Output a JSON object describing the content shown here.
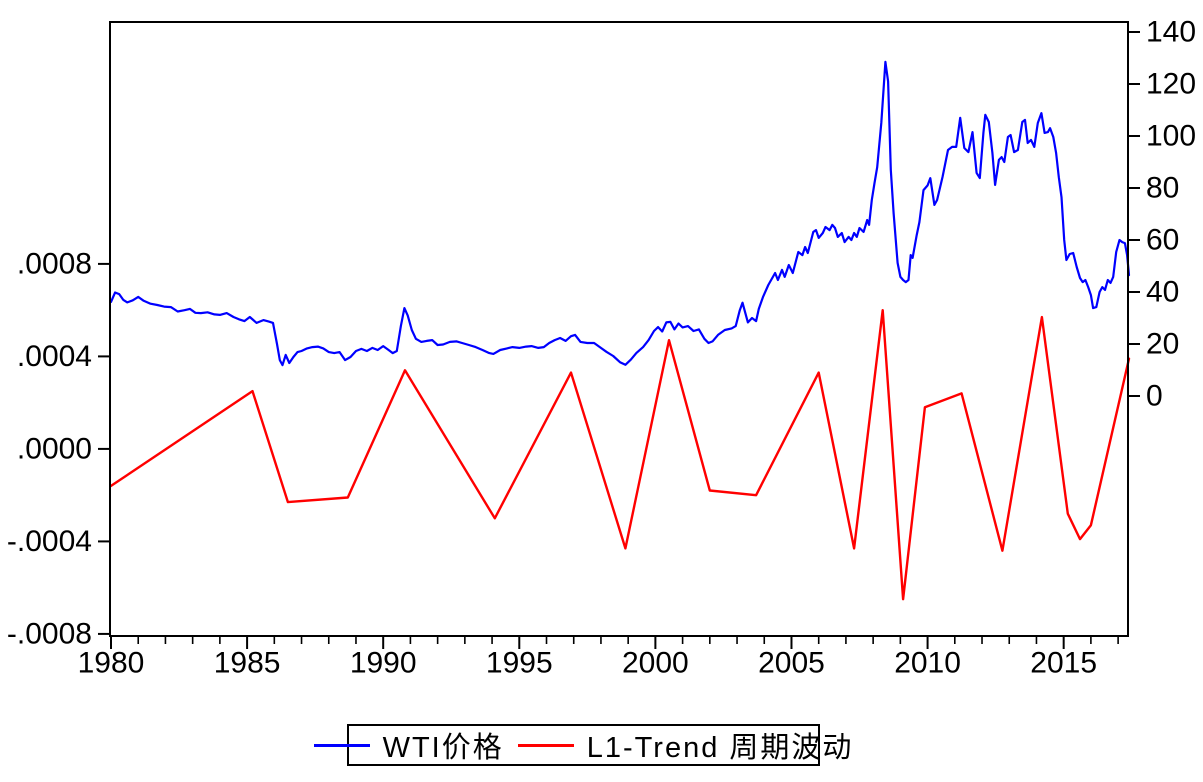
{
  "chart_data": {
    "type": "line",
    "title": "",
    "xlabel": "",
    "ylabel_left": "",
    "ylabel_right": "",
    "grid": false,
    "legend_position": "bottom-center-boxed",
    "x_axis": {
      "min": 1980,
      "max": 2017.4,
      "minor_step": 1,
      "major_ticks": [
        {
          "v": 1980,
          "label": "1980"
        },
        {
          "v": 1985,
          "label": "1985"
        },
        {
          "v": 1990,
          "label": "1990"
        },
        {
          "v": 1995,
          "label": "1995"
        },
        {
          "v": 2000,
          "label": "2000"
        },
        {
          "v": 2005,
          "label": "2005"
        },
        {
          "v": 2010,
          "label": "2010"
        },
        {
          "v": 2015,
          "label": "2015"
        }
      ]
    },
    "left_axis": {
      "min": -0.000809,
      "max": 0.001846,
      "ticks": [
        {
          "v": 0.0008,
          "label": ".0008"
        },
        {
          "v": 0.0004,
          "label": ".0004"
        },
        {
          "v": 0.0,
          "label": ".0000"
        },
        {
          "v": -0.0004,
          "label": "-.0004"
        },
        {
          "v": -0.0008,
          "label": "-.0008"
        }
      ]
    },
    "right_axis": {
      "min": -92.31,
      "max": 143.85,
      "ticks": [
        {
          "v": 0,
          "label": "0"
        },
        {
          "v": 20,
          "label": "20"
        },
        {
          "v": 40,
          "label": "40"
        },
        {
          "v": 60,
          "label": "60"
        },
        {
          "v": 80,
          "label": "80"
        },
        {
          "v": 100,
          "label": "100"
        },
        {
          "v": 120,
          "label": "120"
        },
        {
          "v": 140,
          "label": "140"
        }
      ]
    },
    "legend": {
      "items": [
        {
          "label": "WTI价格",
          "color": "#0000ff"
        },
        {
          "label": "L1-Trend 周期波动",
          "color": "#ff0000"
        }
      ]
    },
    "series": [
      {
        "name": "WTI价格",
        "axis": "right",
        "color": "#0000ff",
        "width": 2.2,
        "points": [
          [
            1980.0,
            36.2
          ],
          [
            1980.15,
            39.8
          ],
          [
            1980.3,
            39.2
          ],
          [
            1980.45,
            37.0
          ],
          [
            1980.6,
            36.0
          ],
          [
            1980.8,
            36.8
          ],
          [
            1981.0,
            38.1
          ],
          [
            1981.2,
            36.6
          ],
          [
            1981.45,
            35.5
          ],
          [
            1981.7,
            35.0
          ],
          [
            1981.95,
            34.4
          ],
          [
            1982.2,
            34.2
          ],
          [
            1982.45,
            32.5
          ],
          [
            1982.7,
            33.0
          ],
          [
            1982.9,
            33.5
          ],
          [
            1983.1,
            32.0
          ],
          [
            1983.3,
            31.9
          ],
          [
            1983.55,
            32.2
          ],
          [
            1983.8,
            31.4
          ],
          [
            1984.0,
            31.2
          ],
          [
            1984.25,
            31.9
          ],
          [
            1984.5,
            30.4
          ],
          [
            1984.7,
            29.5
          ],
          [
            1984.9,
            28.8
          ],
          [
            1985.1,
            30.4
          ],
          [
            1985.35,
            28.1
          ],
          [
            1985.6,
            29.2
          ],
          [
            1985.8,
            28.6
          ],
          [
            1985.95,
            28.1
          ],
          [
            1986.1,
            20.0
          ],
          [
            1986.2,
            13.8
          ],
          [
            1986.3,
            11.9
          ],
          [
            1986.42,
            15.8
          ],
          [
            1986.55,
            12.7
          ],
          [
            1986.7,
            15.0
          ],
          [
            1986.85,
            16.9
          ],
          [
            1987.0,
            17.3
          ],
          [
            1987.2,
            18.3
          ],
          [
            1987.4,
            18.8
          ],
          [
            1987.6,
            19.0
          ],
          [
            1987.8,
            18.3
          ],
          [
            1988.0,
            16.9
          ],
          [
            1988.2,
            16.5
          ],
          [
            1988.4,
            16.9
          ],
          [
            1988.6,
            13.8
          ],
          [
            1988.8,
            15.0
          ],
          [
            1989.0,
            17.3
          ],
          [
            1989.2,
            18.1
          ],
          [
            1989.4,
            17.3
          ],
          [
            1989.6,
            18.5
          ],
          [
            1989.8,
            17.7
          ],
          [
            1990.0,
            19.2
          ],
          [
            1990.2,
            17.7
          ],
          [
            1990.35,
            16.5
          ],
          [
            1990.5,
            17.3
          ],
          [
            1990.65,
            27.0
          ],
          [
            1990.78,
            33.8
          ],
          [
            1990.9,
            31.0
          ],
          [
            1991.05,
            25.4
          ],
          [
            1991.2,
            22.0
          ],
          [
            1991.4,
            20.8
          ],
          [
            1991.6,
            21.2
          ],
          [
            1991.8,
            21.5
          ],
          [
            1992.0,
            19.6
          ],
          [
            1992.2,
            19.8
          ],
          [
            1992.45,
            20.8
          ],
          [
            1992.7,
            21.0
          ],
          [
            1992.9,
            20.4
          ],
          [
            1993.15,
            19.6
          ],
          [
            1993.4,
            18.8
          ],
          [
            1993.65,
            17.7
          ],
          [
            1993.9,
            16.5
          ],
          [
            1994.05,
            16.2
          ],
          [
            1994.3,
            17.7
          ],
          [
            1994.55,
            18.3
          ],
          [
            1994.75,
            18.8
          ],
          [
            1995.0,
            18.5
          ],
          [
            1995.25,
            19.0
          ],
          [
            1995.45,
            19.2
          ],
          [
            1995.7,
            18.5
          ],
          [
            1995.9,
            18.8
          ],
          [
            1996.1,
            20.4
          ],
          [
            1996.3,
            21.5
          ],
          [
            1996.5,
            22.3
          ],
          [
            1996.7,
            21.2
          ],
          [
            1996.9,
            23.0
          ],
          [
            1997.05,
            23.5
          ],
          [
            1997.25,
            20.8
          ],
          [
            1997.5,
            20.4
          ],
          [
            1997.75,
            20.4
          ],
          [
            1998.0,
            18.5
          ],
          [
            1998.2,
            17.0
          ],
          [
            1998.45,
            15.4
          ],
          [
            1998.7,
            13.0
          ],
          [
            1998.9,
            12.0
          ],
          [
            1999.1,
            14.0
          ],
          [
            1999.3,
            16.5
          ],
          [
            1999.55,
            18.8
          ],
          [
            1999.75,
            21.5
          ],
          [
            1999.95,
            25.0
          ],
          [
            2000.1,
            26.5
          ],
          [
            2000.25,
            24.8
          ],
          [
            2000.4,
            28.3
          ],
          [
            2000.55,
            28.5
          ],
          [
            2000.7,
            25.6
          ],
          [
            2000.85,
            27.9
          ],
          [
            2001.0,
            26.4
          ],
          [
            2001.2,
            26.9
          ],
          [
            2001.4,
            25.0
          ],
          [
            2001.6,
            25.6
          ],
          [
            2001.8,
            22.0
          ],
          [
            2001.95,
            20.4
          ],
          [
            2002.1,
            21.0
          ],
          [
            2002.3,
            23.5
          ],
          [
            2002.55,
            25.4
          ],
          [
            2002.8,
            26.0
          ],
          [
            2002.95,
            26.9
          ],
          [
            2003.1,
            33.0
          ],
          [
            2003.2,
            35.9
          ],
          [
            2003.4,
            28.3
          ],
          [
            2003.55,
            30.0
          ],
          [
            2003.7,
            28.8
          ],
          [
            2003.8,
            33.5
          ],
          [
            2003.95,
            38.0
          ],
          [
            2004.15,
            42.7
          ],
          [
            2004.4,
            47.3
          ],
          [
            2004.5,
            44.6
          ],
          [
            2004.65,
            48.5
          ],
          [
            2004.75,
            45.8
          ],
          [
            2004.9,
            50.4
          ],
          [
            2005.05,
            47.3
          ],
          [
            2005.25,
            55.4
          ],
          [
            2005.4,
            54.2
          ],
          [
            2005.5,
            57.3
          ],
          [
            2005.6,
            55.0
          ],
          [
            2005.8,
            63.1
          ],
          [
            2005.9,
            63.8
          ],
          [
            2006.0,
            60.8
          ],
          [
            2006.15,
            62.7
          ],
          [
            2006.25,
            65.0
          ],
          [
            2006.4,
            63.8
          ],
          [
            2006.5,
            65.8
          ],
          [
            2006.6,
            64.6
          ],
          [
            2006.7,
            61.2
          ],
          [
            2006.85,
            62.7
          ],
          [
            2006.95,
            59.2
          ],
          [
            2007.1,
            61.2
          ],
          [
            2007.2,
            60.0
          ],
          [
            2007.3,
            62.7
          ],
          [
            2007.4,
            61.2
          ],
          [
            2007.5,
            64.6
          ],
          [
            2007.65,
            63.1
          ],
          [
            2007.78,
            67.7
          ],
          [
            2007.85,
            65.8
          ],
          [
            2007.95,
            75.4
          ],
          [
            2008.05,
            81.9
          ],
          [
            2008.15,
            88.0
          ],
          [
            2008.3,
            105.0
          ],
          [
            2008.45,
            128.5
          ],
          [
            2008.55,
            121.0
          ],
          [
            2008.65,
            87.0
          ],
          [
            2008.75,
            70.4
          ],
          [
            2008.9,
            51.2
          ],
          [
            2009.0,
            45.8
          ],
          [
            2009.1,
            44.6
          ],
          [
            2009.2,
            43.8
          ],
          [
            2009.3,
            44.6
          ],
          [
            2009.38,
            54.2
          ],
          [
            2009.45,
            53.1
          ],
          [
            2009.6,
            61.9
          ],
          [
            2009.7,
            66.9
          ],
          [
            2009.85,
            79.2
          ],
          [
            2010.0,
            81.0
          ],
          [
            2010.1,
            83.8
          ],
          [
            2010.25,
            73.5
          ],
          [
            2010.35,
            75.4
          ],
          [
            2010.55,
            84.2
          ],
          [
            2010.75,
            94.6
          ],
          [
            2010.9,
            95.8
          ],
          [
            2011.05,
            95.8
          ],
          [
            2011.2,
            107.0
          ],
          [
            2011.35,
            95.4
          ],
          [
            2011.5,
            93.8
          ],
          [
            2011.65,
            101.5
          ],
          [
            2011.8,
            85.8
          ],
          [
            2011.92,
            83.8
          ],
          [
            2012.05,
            101.2
          ],
          [
            2012.12,
            108.1
          ],
          [
            2012.25,
            105.4
          ],
          [
            2012.38,
            93.5
          ],
          [
            2012.48,
            81.2
          ],
          [
            2012.62,
            90.8
          ],
          [
            2012.72,
            91.9
          ],
          [
            2012.82,
            90.0
          ],
          [
            2012.95,
            99.6
          ],
          [
            2013.05,
            100.4
          ],
          [
            2013.18,
            93.8
          ],
          [
            2013.32,
            94.6
          ],
          [
            2013.48,
            105.4
          ],
          [
            2013.58,
            106.2
          ],
          [
            2013.68,
            97.3
          ],
          [
            2013.8,
            98.5
          ],
          [
            2013.92,
            95.8
          ],
          [
            2014.05,
            105.0
          ],
          [
            2014.18,
            108.8
          ],
          [
            2014.3,
            101.2
          ],
          [
            2014.42,
            101.5
          ],
          [
            2014.5,
            103.0
          ],
          [
            2014.62,
            99.6
          ],
          [
            2014.72,
            93.5
          ],
          [
            2014.82,
            84.2
          ],
          [
            2014.92,
            76.5
          ],
          [
            2015.02,
            60.0
          ],
          [
            2015.1,
            52.3
          ],
          [
            2015.22,
            54.6
          ],
          [
            2015.35,
            55.0
          ],
          [
            2015.48,
            49.6
          ],
          [
            2015.6,
            45.4
          ],
          [
            2015.7,
            43.8
          ],
          [
            2015.8,
            44.6
          ],
          [
            2015.9,
            41.9
          ],
          [
            2016.0,
            38.8
          ],
          [
            2016.08,
            33.8
          ],
          [
            2016.2,
            34.2
          ],
          [
            2016.32,
            40.0
          ],
          [
            2016.42,
            41.9
          ],
          [
            2016.52,
            40.8
          ],
          [
            2016.62,
            44.6
          ],
          [
            2016.72,
            43.5
          ],
          [
            2016.82,
            45.8
          ],
          [
            2016.93,
            55.4
          ],
          [
            2017.05,
            60.0
          ],
          [
            2017.15,
            59.2
          ],
          [
            2017.25,
            58.8
          ],
          [
            2017.33,
            54.2
          ],
          [
            2017.4,
            46.5
          ]
        ]
      },
      {
        "name": "L1-Trend 周期波动",
        "axis": "left",
        "color": "#ff0000",
        "width": 2.4,
        "points": [
          [
            1980.0,
            -0.00016
          ],
          [
            1985.2,
            0.00025
          ],
          [
            1986.5,
            -0.00023
          ],
          [
            1988.7,
            -0.00021
          ],
          [
            1990.8,
            0.00034
          ],
          [
            1994.1,
            -0.0003
          ],
          [
            1996.9,
            0.00033
          ],
          [
            1998.9,
            -0.00043
          ],
          [
            2000.5,
            0.00047
          ],
          [
            2002.0,
            -0.00018
          ],
          [
            2003.7,
            -0.0002
          ],
          [
            2006.0,
            0.00033
          ],
          [
            2007.3,
            -0.00043
          ],
          [
            2008.35,
            0.0006
          ],
          [
            2009.1,
            -0.00065
          ],
          [
            2009.9,
            0.00018
          ],
          [
            2011.25,
            0.00024
          ],
          [
            2012.75,
            -0.00044
          ],
          [
            2014.2,
            0.00057
          ],
          [
            2015.15,
            -0.00028
          ],
          [
            2015.6,
            -0.00039
          ],
          [
            2016.0,
            -0.00033
          ],
          [
            2017.4,
            0.00039
          ]
        ]
      }
    ]
  }
}
